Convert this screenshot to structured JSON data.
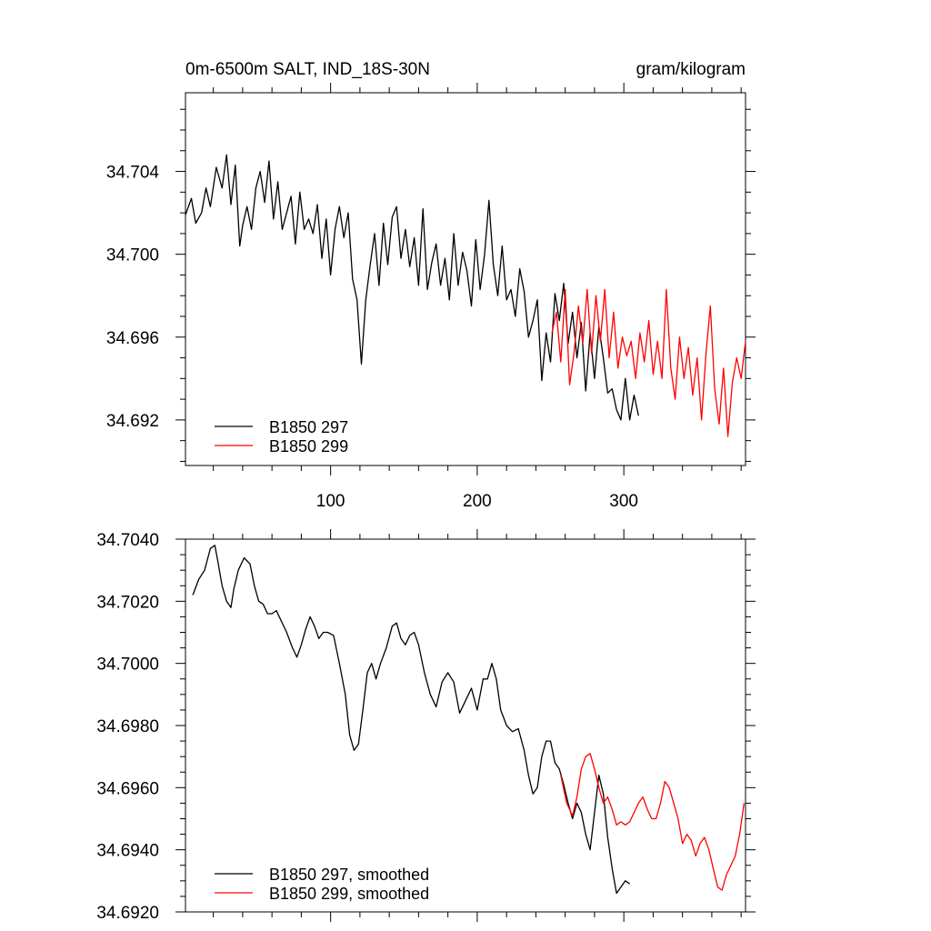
{
  "chart_data": [
    {
      "type": "line",
      "title": "0m-6500m SALT, IND_18S-30N",
      "units_label": "gram/kilogram",
      "xlabel": "",
      "ylabel": "",
      "xlim": [
        1,
        383
      ],
      "ylim": [
        34.6898,
        34.7078
      ],
      "x_ticks": [
        100,
        200,
        300
      ],
      "x_tick_labels": [
        "100",
        "200",
        "300"
      ],
      "y_ticks": [
        34.692,
        34.696,
        34.7,
        34.704
      ],
      "y_tick_labels": [
        "34.692",
        "34.696",
        "34.700",
        "34.704"
      ],
      "grid": false,
      "legend_position": "bottom-left",
      "series": [
        {
          "name": "B1850 297",
          "color": "#000000",
          "x": [
            1,
            5,
            8,
            12,
            15,
            18,
            22,
            26,
            29,
            32,
            35,
            38,
            40,
            43,
            46,
            49,
            52,
            55,
            58,
            61,
            64,
            67,
            70,
            73,
            76,
            79,
            82,
            85,
            88,
            91,
            94,
            97,
            100,
            103,
            106,
            109,
            112,
            115,
            118,
            121,
            124,
            127,
            130,
            133,
            136,
            139,
            142,
            145,
            148,
            151,
            154,
            157,
            160,
            163,
            166,
            169,
            172,
            175,
            178,
            181,
            184,
            187,
            190,
            193,
            196,
            199,
            202,
            205,
            208,
            211,
            214,
            217,
            220,
            223,
            226,
            229,
            232,
            235,
            238,
            241,
            244,
            247,
            250,
            253,
            256,
            259,
            262,
            265,
            268,
            271,
            274,
            277,
            280,
            283,
            286,
            289,
            292,
            295,
            298,
            301,
            304,
            307,
            310
          ],
          "values": [
            34.7019,
            34.7027,
            34.7015,
            34.702,
            34.7032,
            34.7023,
            34.7042,
            34.7032,
            34.7048,
            34.7024,
            34.7043,
            34.7004,
            34.7014,
            34.7023,
            34.7012,
            34.7032,
            34.704,
            34.7025,
            34.7045,
            34.7017,
            34.7035,
            34.7012,
            34.702,
            34.7028,
            34.7005,
            34.703,
            34.7012,
            34.7017,
            34.701,
            34.7024,
            34.6998,
            34.7017,
            34.699,
            34.7012,
            34.7023,
            34.7008,
            34.702,
            34.6988,
            34.6978,
            34.6947,
            34.6978,
            34.6995,
            34.701,
            34.6985,
            34.7015,
            34.6995,
            34.7018,
            34.7023,
            34.6998,
            34.7012,
            34.6994,
            34.7008,
            34.6985,
            34.7022,
            34.6983,
            34.6996,
            34.7005,
            34.6985,
            34.6998,
            34.6978,
            34.701,
            34.6985,
            34.7001,
            34.6992,
            34.6975,
            34.7007,
            34.6983,
            34.7,
            34.7026,
            34.6995,
            34.698,
            34.7004,
            34.6978,
            34.6983,
            34.697,
            34.6993,
            34.6982,
            34.696,
            34.6968,
            34.6978,
            34.6939,
            34.6962,
            34.6948,
            34.6981,
            34.6968,
            34.6986,
            34.6957,
            34.6972,
            34.695,
            34.6967,
            34.6934,
            34.6962,
            34.694,
            34.6965,
            34.695,
            34.6933,
            34.6935,
            34.6925,
            34.692,
            34.694,
            34.692,
            34.6932,
            34.6922
          ]
        },
        {
          "name": "B1850 299",
          "color": "#ff0000",
          "x": [
            251,
            254,
            257,
            260,
            263,
            266,
            269,
            272,
            275,
            278,
            281,
            284,
            287,
            290,
            293,
            296,
            299,
            302,
            305,
            308,
            311,
            314,
            317,
            320,
            323,
            326,
            329,
            332,
            335,
            338,
            341,
            344,
            347,
            350,
            353,
            356,
            359,
            362,
            365,
            368,
            371,
            374,
            377,
            380,
            383
          ],
          "values": [
            34.6962,
            34.6972,
            34.6948,
            34.6983,
            34.6937,
            34.6952,
            34.6975,
            34.6957,
            34.6983,
            34.6952,
            34.698,
            34.6958,
            34.6983,
            34.695,
            34.6972,
            34.6945,
            34.696,
            34.6951,
            34.6958,
            34.694,
            34.6962,
            34.6948,
            34.6968,
            34.6942,
            34.6958,
            34.694,
            34.6983,
            34.6945,
            34.693,
            34.696,
            34.694,
            34.6955,
            34.6932,
            34.695,
            34.692,
            34.6952,
            34.6975,
            34.6935,
            34.6918,
            34.6945,
            34.6912,
            34.6938,
            34.695,
            34.694,
            34.6958
          ]
        }
      ]
    },
    {
      "type": "line",
      "title": "",
      "xlabel": "",
      "ylabel": "",
      "xlim": [
        1,
        383
      ],
      "ylim": [
        34.692,
        34.704
      ],
      "x_ticks": [
        100,
        200,
        300
      ],
      "x_tick_labels": [],
      "y_ticks": [
        34.692,
        34.694,
        34.696,
        34.698,
        34.7,
        34.702,
        34.704
      ],
      "y_tick_labels": [
        "34.6920",
        "34.6940",
        "34.6960",
        "34.6980",
        "34.7000",
        "34.7020",
        "34.7040"
      ],
      "grid": false,
      "legend_position": "bottom-left",
      "series": [
        {
          "name": "B1850 297, smoothed",
          "color": "#000000",
          "x": [
            6,
            10,
            14,
            18,
            21,
            23,
            26,
            29,
            32,
            34,
            37,
            41,
            45,
            48,
            51,
            54,
            57,
            60,
            63,
            66,
            70,
            74,
            77,
            80,
            83,
            86,
            89,
            92,
            95,
            98,
            102,
            106,
            110,
            113,
            116,
            119,
            122,
            125,
            128,
            131,
            134,
            138,
            142,
            145,
            148,
            151,
            154,
            157,
            160,
            164,
            168,
            172,
            176,
            180,
            184,
            188,
            192,
            196,
            200,
            204,
            207,
            210,
            213,
            216,
            220,
            224,
            228,
            232,
            235,
            238,
            241,
            244,
            247,
            250,
            253,
            256,
            259,
            262,
            265,
            268,
            271,
            274,
            277,
            280,
            283,
            286,
            289,
            292,
            295,
            298,
            301,
            304
          ],
          "values": [
            34.7022,
            34.7027,
            34.703,
            34.7037,
            34.7038,
            34.7033,
            34.7025,
            34.702,
            34.7018,
            34.7024,
            34.703,
            34.7034,
            34.7032,
            34.7025,
            34.702,
            34.7019,
            34.7016,
            34.7016,
            34.7017,
            34.7014,
            34.701,
            34.7005,
            34.7002,
            34.7006,
            34.7011,
            34.7015,
            34.7012,
            34.7008,
            34.701,
            34.701,
            34.7009,
            34.7,
            34.699,
            34.6977,
            34.6972,
            34.6974,
            34.6985,
            34.6997,
            34.7,
            34.6995,
            34.7,
            34.7005,
            34.7012,
            34.7013,
            34.7008,
            34.7006,
            34.7009,
            34.701,
            34.7006,
            34.6997,
            34.699,
            34.6986,
            34.6994,
            34.6997,
            34.6994,
            34.6984,
            34.6988,
            34.6992,
            34.6985,
            34.6995,
            34.6995,
            34.7,
            34.6995,
            34.6985,
            34.698,
            34.6978,
            34.6979,
            34.6972,
            34.6964,
            34.6958,
            34.696,
            34.697,
            34.6975,
            34.6975,
            34.6968,
            34.6966,
            34.6961,
            34.6955,
            34.695,
            34.6955,
            34.6952,
            34.6945,
            34.694,
            34.6952,
            34.6964,
            34.6958,
            34.6944,
            34.6934,
            34.6926,
            34.6928,
            34.693,
            34.6929
          ]
        },
        {
          "name": "B1850 299, smoothed",
          "color": "#ff0000",
          "x": [
            257,
            261,
            265,
            268,
            271,
            274,
            277,
            280,
            283,
            286,
            289,
            292,
            295,
            298,
            301,
            304,
            307,
            310,
            313,
            316,
            319,
            322,
            325,
            328,
            331,
            334,
            337,
            340,
            343,
            346,
            349,
            352,
            355,
            358,
            361,
            364,
            367,
            370,
            373,
            376,
            379,
            382
          ],
          "values": [
            34.6964,
            34.6955,
            34.6951,
            34.6957,
            34.6966,
            34.697,
            34.6971,
            34.6966,
            34.696,
            34.6955,
            34.6957,
            34.6953,
            34.6948,
            34.6949,
            34.6948,
            34.6949,
            34.6952,
            34.6955,
            34.6957,
            34.6953,
            34.695,
            34.695,
            34.6955,
            34.6962,
            34.696,
            34.6955,
            34.695,
            34.6942,
            34.6945,
            34.6943,
            34.6938,
            34.6942,
            34.6944,
            34.694,
            34.6934,
            34.6928,
            34.6927,
            34.6932,
            34.6935,
            34.6938,
            34.6945,
            34.6955
          ]
        }
      ]
    }
  ]
}
